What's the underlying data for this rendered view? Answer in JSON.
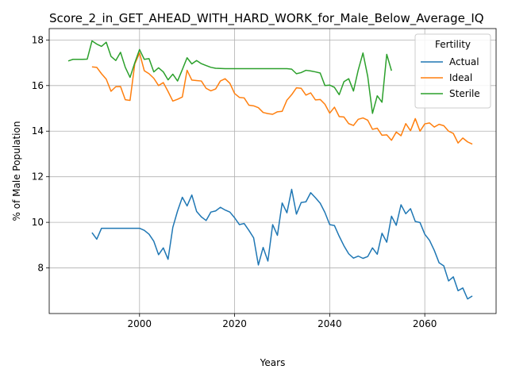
{
  "chart_data": {
    "type": "line",
    "title": "Score_2_in_GET_AHEAD_WITH_HARD_WORK_for_Male_Below_Average_IQ",
    "xlabel": "Years",
    "ylabel": "% of Male Population",
    "xlim": [
      1981,
      2075
    ],
    "ylim": [
      6.0,
      18.5
    ],
    "xticks": [
      2000,
      2020,
      2040,
      2060
    ],
    "yticks": [
      8,
      10,
      12,
      14,
      16,
      18
    ],
    "grid": true,
    "legend": {
      "title": "Fertility",
      "position": "top-right"
    },
    "series": [
      {
        "name": "Actual",
        "color": "#1f77b4",
        "x": [
          1990,
          1991,
          1992,
          1993,
          1994,
          1995,
          1996,
          1997,
          1998,
          1999,
          2000,
          2001,
          2002,
          2003,
          2004,
          2005,
          2006,
          2007,
          2008,
          2009,
          2010,
          2011,
          2012,
          2013,
          2014,
          2015,
          2016,
          2017,
          2018,
          2019,
          2020,
          2021,
          2022,
          2023,
          2024,
          2025,
          2026,
          2027,
          2028,
          2029,
          2030,
          2031,
          2032,
          2033,
          2034,
          2035,
          2036,
          2037,
          2038,
          2039,
          2040,
          2041,
          2042,
          2043,
          2044,
          2045,
          2046,
          2047,
          2048,
          2049,
          2050,
          2051,
          2052,
          2053,
          2054,
          2055,
          2056,
          2057,
          2058,
          2059,
          2060,
          2061,
          2062,
          2063,
          2064,
          2065,
          2066,
          2067,
          2068,
          2069,
          2070
        ],
        "y": [
          9.55,
          9.26,
          9.74,
          9.74,
          9.74,
          9.74,
          9.74,
          9.74,
          9.74,
          9.74,
          9.74,
          9.65,
          9.48,
          9.17,
          8.58,
          8.88,
          8.38,
          9.78,
          10.5,
          11.1,
          10.72,
          11.2,
          10.48,
          10.24,
          10.08,
          10.45,
          10.5,
          10.66,
          10.54,
          10.45,
          10.2,
          9.9,
          9.95,
          9.65,
          9.32,
          8.13,
          8.9,
          8.3,
          9.9,
          9.43,
          10.85,
          10.42,
          11.45,
          10.36,
          10.87,
          10.9,
          11.3,
          11.08,
          10.84,
          10.43,
          9.9,
          9.86,
          9.39,
          8.97,
          8.62,
          8.43,
          8.52,
          8.42,
          8.5,
          8.88,
          8.6,
          9.52,
          9.13,
          10.27,
          9.87,
          10.77,
          10.38,
          10.6,
          10.04,
          9.99,
          9.48,
          9.21,
          8.77,
          8.23,
          8.09,
          7.43,
          7.61,
          7.0,
          7.12,
          6.64,
          6.77
        ]
      },
      {
        "name": "Ideal",
        "color": "#ff7f0e",
        "x": [
          1990,
          1991,
          1992,
          1993,
          1994,
          1995,
          1996,
          1997,
          1998,
          1999,
          2000,
          2001,
          2002,
          2003,
          2004,
          2005,
          2006,
          2007,
          2008,
          2009,
          2010,
          2011,
          2012,
          2013,
          2014,
          2015,
          2016,
          2017,
          2018,
          2019,
          2020,
          2021,
          2022,
          2023,
          2024,
          2025,
          2026,
          2027,
          2028,
          2029,
          2030,
          2031,
          2032,
          2033,
          2034,
          2035,
          2036,
          2037,
          2038,
          2039,
          2040,
          2041,
          2042,
          2043,
          2044,
          2045,
          2046,
          2047,
          2048,
          2049,
          2050,
          2051,
          2052,
          2053,
          2054,
          2055,
          2056,
          2057,
          2058,
          2059,
          2060,
          2061,
          2062,
          2063,
          2064,
          2065,
          2066,
          2067,
          2068,
          2069,
          2070
        ],
        "y": [
          16.82,
          16.8,
          16.52,
          16.28,
          15.75,
          15.95,
          15.96,
          15.38,
          15.35,
          16.95,
          17.43,
          16.65,
          16.52,
          16.32,
          16.0,
          16.13,
          15.74,
          15.32,
          15.4,
          15.5,
          16.67,
          16.24,
          16.22,
          16.2,
          15.88,
          15.77,
          15.85,
          16.2,
          16.3,
          16.1,
          15.65,
          15.48,
          15.46,
          15.14,
          15.11,
          15.03,
          14.82,
          14.77,
          14.74,
          14.85,
          14.87,
          15.36,
          15.6,
          15.9,
          15.88,
          15.58,
          15.68,
          15.37,
          15.39,
          15.18,
          14.79,
          15.05,
          14.64,
          14.62,
          14.33,
          14.25,
          14.52,
          14.58,
          14.48,
          14.08,
          14.13,
          13.82,
          13.84,
          13.6,
          13.96,
          13.8,
          14.33,
          14.02,
          14.55,
          14.0,
          14.32,
          14.36,
          14.18,
          14.3,
          14.24,
          14.0,
          13.9,
          13.48,
          13.7,
          13.53,
          13.43
        ]
      },
      {
        "name": "Sterile",
        "color": "#2ca02c",
        "x": [
          1985,
          1986,
          1987,
          1988,
          1989,
          1990,
          1991,
          1992,
          1993,
          1994,
          1995,
          1996,
          1997,
          1998,
          1999,
          2000,
          2001,
          2002,
          2003,
          2004,
          2005,
          2006,
          2007,
          2008,
          2009,
          2010,
          2011,
          2012,
          2013,
          2014,
          2015,
          2016,
          2017,
          2018,
          2019,
          2020,
          2021,
          2022,
          2023,
          2024,
          2025,
          2026,
          2027,
          2028,
          2029,
          2030,
          2031,
          2032,
          2033,
          2034,
          2035,
          2036,
          2037,
          2038,
          2039,
          2040,
          2041,
          2042,
          2043,
          2044,
          2045,
          2046,
          2047,
          2048,
          2049,
          2050,
          2051,
          2052,
          2053
        ],
        "y": [
          17.08,
          17.15,
          17.15,
          17.15,
          17.16,
          17.96,
          17.82,
          17.72,
          17.9,
          17.28,
          17.1,
          17.46,
          16.8,
          16.36,
          17.0,
          17.58,
          17.15,
          17.18,
          16.6,
          16.78,
          16.6,
          16.25,
          16.5,
          16.2,
          16.7,
          17.22,
          16.95,
          17.1,
          16.96,
          16.88,
          16.8,
          16.76,
          16.75,
          16.74,
          16.74,
          16.74,
          16.74,
          16.74,
          16.74,
          16.74,
          16.74,
          16.74,
          16.74,
          16.74,
          16.74,
          16.74,
          16.74,
          16.72,
          16.52,
          16.57,
          16.67,
          16.64,
          16.6,
          16.55,
          16.0,
          16.02,
          15.92,
          15.6,
          16.17,
          16.3,
          15.76,
          16.68,
          17.43,
          16.4,
          14.78,
          15.55,
          15.27,
          17.37,
          16.65
        ]
      }
    ]
  }
}
